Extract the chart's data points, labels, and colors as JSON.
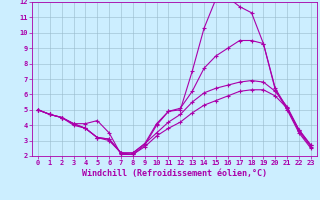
{
  "title": "",
  "xlabel": "Windchill (Refroidissement éolien,°C)",
  "ylabel": "",
  "bg_color": "#cceeff",
  "line_color": "#aa00aa",
  "grid_color": "#99bbcc",
  "xlim": [
    -0.5,
    23.5
  ],
  "ylim": [
    2,
    12
  ],
  "xticks": [
    0,
    1,
    2,
    3,
    4,
    5,
    6,
    7,
    8,
    9,
    10,
    11,
    12,
    13,
    14,
    15,
    16,
    17,
    18,
    19,
    20,
    21,
    22,
    23
  ],
  "yticks": [
    2,
    3,
    4,
    5,
    6,
    7,
    8,
    9,
    10,
    11,
    12
  ],
  "lines": [
    {
      "x": [
        0,
        1,
        2,
        3,
        4,
        5,
        6,
        7,
        8,
        9,
        10,
        11,
        12,
        13,
        14,
        15,
        16,
        17,
        18,
        19,
        20,
        21,
        22,
        23
      ],
      "y": [
        5.0,
        4.7,
        4.5,
        4.1,
        4.1,
        4.3,
        3.5,
        2.1,
        2.1,
        2.7,
        4.0,
        4.9,
        5.0,
        7.5,
        10.3,
        12.2,
        12.3,
        11.7,
        11.3,
        9.3,
        6.3,
        5.0,
        3.5,
        2.5
      ]
    },
    {
      "x": [
        0,
        1,
        2,
        3,
        4,
        5,
        6,
        7,
        8,
        9,
        10,
        11,
        12,
        13,
        14,
        15,
        16,
        17,
        18,
        19,
        20,
        21,
        22,
        23
      ],
      "y": [
        5.0,
        4.7,
        4.5,
        4.1,
        3.8,
        3.2,
        3.1,
        2.2,
        2.2,
        2.8,
        4.1,
        4.9,
        5.1,
        6.2,
        7.7,
        8.5,
        9.0,
        9.5,
        9.5,
        9.3,
        6.4,
        5.1,
        3.6,
        2.6
      ]
    },
    {
      "x": [
        0,
        1,
        2,
        3,
        4,
        5,
        6,
        7,
        8,
        9,
        10,
        11,
        12,
        13,
        14,
        15,
        16,
        17,
        18,
        19,
        20,
        21,
        22,
        23
      ],
      "y": [
        5.0,
        4.7,
        4.5,
        4.1,
        3.8,
        3.2,
        3.1,
        2.2,
        2.2,
        2.8,
        3.5,
        4.2,
        4.7,
        5.5,
        6.1,
        6.4,
        6.6,
        6.8,
        6.9,
        6.8,
        6.2,
        5.2,
        3.7,
        2.7
      ]
    },
    {
      "x": [
        0,
        1,
        2,
        3,
        4,
        5,
        6,
        7,
        8,
        9,
        10,
        11,
        12,
        13,
        14,
        15,
        16,
        17,
        18,
        19,
        20,
        21,
        22,
        23
      ],
      "y": [
        5.0,
        4.7,
        4.5,
        4.0,
        3.8,
        3.2,
        3.0,
        2.2,
        2.1,
        2.6,
        3.3,
        3.8,
        4.2,
        4.8,
        5.3,
        5.6,
        5.9,
        6.2,
        6.3,
        6.3,
        5.9,
        5.1,
        3.7,
        2.7
      ]
    }
  ],
  "marker": "+",
  "markersize": 3,
  "markeredgewidth": 0.8,
  "linewidth": 0.8,
  "tick_fontsize": 5,
  "label_fontsize": 6
}
